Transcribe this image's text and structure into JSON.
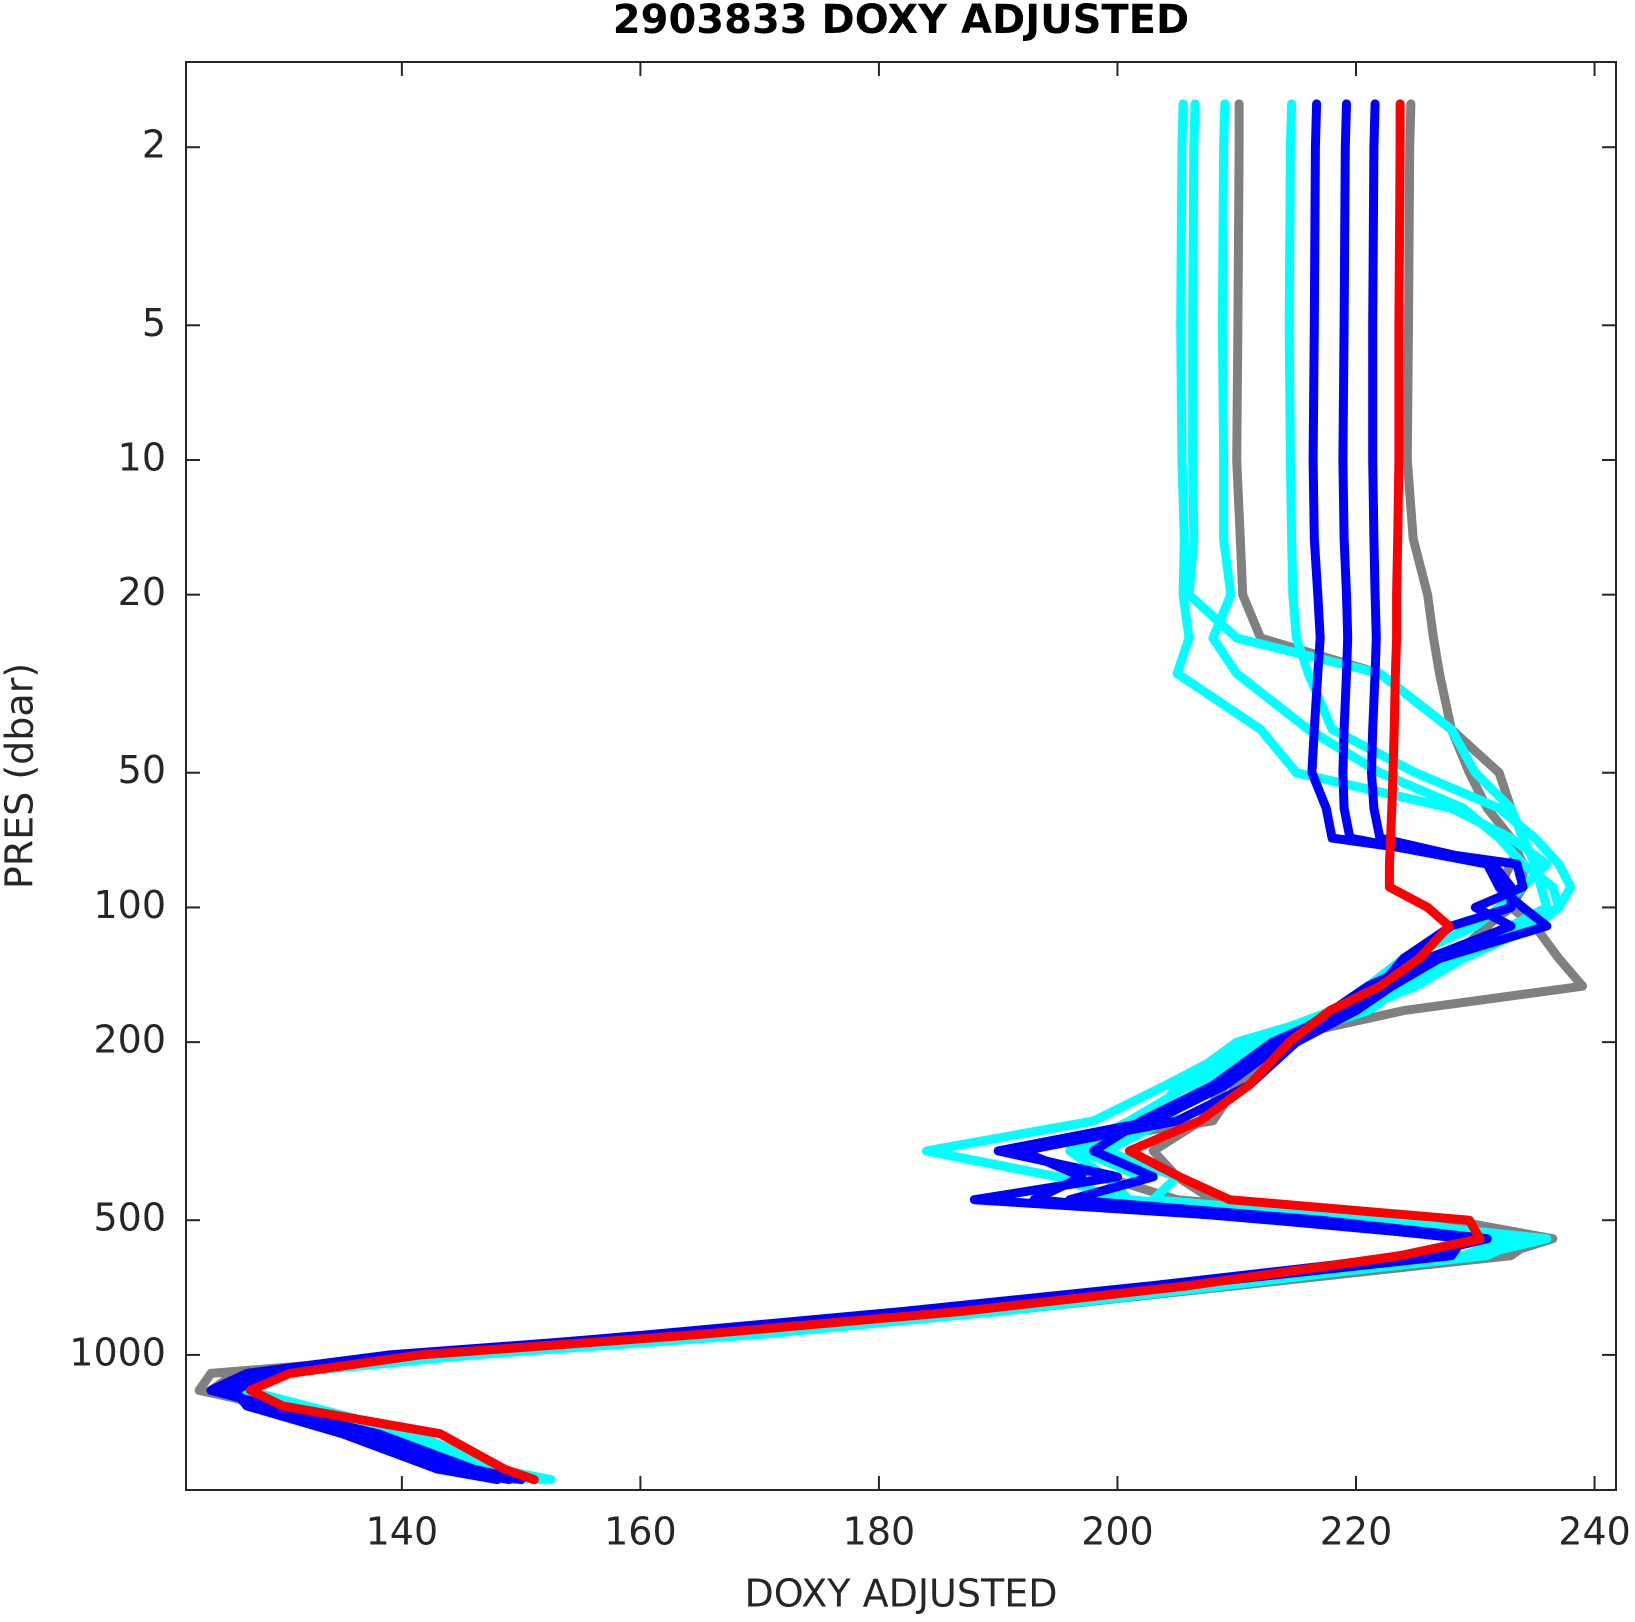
{
  "chart_data": {
    "type": "profile",
    "title": "2903833  DOXY ADJUSTED",
    "xlabel": "DOXY ADJUSTED",
    "ylabel": "PRES (dbar)",
    "xlim": [
      121.9,
      241.8
    ],
    "xticks": [
      140,
      160,
      180,
      200,
      220,
      240
    ],
    "ylim": [
      1.29,
      2004
    ],
    "yticks": [
      2,
      5,
      10,
      20,
      50,
      100,
      200,
      500,
      1000
    ],
    "y_scale": "log",
    "y_reversed": true,
    "y": [
      1.6,
      2,
      5,
      10,
      15,
      20,
      25,
      30,
      40,
      50,
      60,
      70,
      80,
      90,
      100,
      110,
      130,
      150,
      170,
      200,
      250,
      300,
      350,
      400,
      450,
      500,
      550,
      600,
      700,
      800,
      900,
      1000,
      1100,
      1200,
      1300,
      1500,
      1800,
      1900
    ],
    "series": [
      {
        "color": "#808080",
        "values": [
          210.2,
          210.2,
          210.1,
          210.0,
          210.3,
          210.5,
          212.0,
          222.0,
          228.0,
          232.0,
          233.0,
          234.0,
          233.0,
          232.0,
          233.0,
          235.0,
          237.0,
          239.0,
          224.0,
          212.0,
          209.0,
          207.0,
          203.0,
          205.0,
          208.0,
          228.0,
          236.5,
          232.0,
          207.0,
          188.0,
          166.0,
          143.0,
          124.0,
          123.0,
          129.0,
          137.0,
          145.0,
          150.0
        ]
      },
      {
        "color": "#808080",
        "values": [
          224.6,
          224.5,
          224.4,
          224.3,
          224.8,
          226.0,
          226.5,
          227.0,
          228.0,
          229.5,
          231.0,
          233.0,
          234.0,
          234.0,
          233.0,
          231.0,
          228.0,
          224.0,
          221.0,
          214.0,
          210.0,
          208.0,
          191.0,
          199.0,
          205.0,
          224.0,
          235.0,
          233.0,
          210.0,
          190.0,
          168.0,
          142.0,
          126.0,
          124.0,
          128.0,
          136.0,
          144.0,
          149.5
        ]
      },
      {
        "color": "#00ffff",
        "values": [
          205.5,
          205.4,
          205.3,
          205.4,
          205.6,
          205.5,
          206.0,
          205.0,
          212.0,
          215.0,
          228.0,
          233.0,
          236.0,
          234.0,
          232.0,
          230.0,
          224.0,
          221.0,
          218.0,
          211.0,
          204.0,
          198.0,
          184.0,
          195.0,
          200.0,
          220.0,
          233.0,
          229.0,
          207.0,
          188.0,
          168.0,
          144.0,
          128.0,
          126.0,
          131.0,
          140.0,
          147.0,
          152.0
        ]
      },
      {
        "color": "#00ffff",
        "values": [
          206.5,
          206.4,
          206.3,
          206.3,
          206.4,
          206.0,
          210.0,
          222.0,
          228.0,
          230.0,
          233.0,
          234.0,
          235.0,
          235.5,
          236.0,
          233.0,
          227.0,
          223.0,
          219.0,
          210.0,
          205.0,
          203.0,
          197.0,
          202.0,
          198.0,
          222.0,
          235.0,
          230.0,
          209.0,
          190.0,
          170.0,
          146.0,
          130.0,
          127.0,
          132.0,
          141.0,
          148.0,
          152.5
        ]
      },
      {
        "color": "#00ffff",
        "values": [
          214.6,
          214.5,
          214.4,
          214.5,
          214.6,
          214.7,
          215.0,
          216.0,
          218.0,
          225.0,
          232.0,
          235.0,
          237.0,
          238.0,
          237.0,
          234.0,
          228.0,
          224.0,
          221.0,
          213.0,
          207.0,
          204.0,
          199.0,
          205.0,
          203.0,
          223.0,
          234.0,
          231.0,
          208.0,
          189.0,
          169.0,
          145.0,
          129.0,
          127.0,
          130.0,
          139.0,
          147.0,
          151.5
        ]
      },
      {
        "color": "#00ffff",
        "values": [
          209.0,
          208.9,
          208.8,
          208.9,
          208.9,
          209.5,
          208.0,
          210.0,
          216.0,
          222.0,
          229.0,
          232.0,
          234.0,
          236.5,
          237.0,
          235.0,
          229.0,
          225.0,
          220.0,
          212.0,
          206.0,
          201.0,
          196.0,
          199.0,
          201.0,
          221.0,
          236.0,
          230.0,
          206.0,
          187.0,
          167.0,
          143.0,
          127.0,
          125.0,
          130.0,
          140.0,
          146.5,
          151.0
        ]
      },
      {
        "color": "#0000ff",
        "values": [
          216.7,
          216.6,
          216.5,
          216.4,
          216.5,
          216.8,
          217.0,
          216.8,
          216.5,
          216.3,
          217.5,
          218.0,
          233.5,
          234.0,
          230.0,
          233.0,
          226.0,
          221.0,
          218.0,
          214.0,
          209.0,
          203.0,
          190.0,
          200.0,
          188.0,
          215.0,
          229.0,
          228.0,
          205.0,
          184.0,
          163.0,
          140.0,
          128.0,
          125.0,
          128.0,
          138.0,
          146.0,
          150.0
        ]
      },
      {
        "color": "#0000ff",
        "values": [
          219.2,
          219.1,
          219.0,
          218.9,
          219.0,
          219.2,
          219.3,
          219.2,
          219.0,
          218.9,
          219.0,
          219.5,
          231.0,
          232.0,
          234.0,
          236.0,
          227.0,
          223.0,
          220.0,
          215.0,
          211.0,
          205.0,
          192.0,
          197.0,
          193.0,
          213.0,
          230.0,
          226.0,
          204.0,
          183.0,
          162.0,
          139.0,
          127.0,
          124.0,
          129.0,
          136.0,
          144.0,
          149.0
        ]
      },
      {
        "color": "#0000ff",
        "values": [
          221.6,
          221.5,
          221.4,
          221.4,
          221.5,
          221.6,
          221.7,
          221.6,
          221.4,
          221.3,
          221.5,
          222.0,
          231.5,
          233.0,
          233.0,
          228.0,
          224.0,
          222.0,
          219.0,
          213.0,
          208.0,
          202.0,
          198.0,
          203.0,
          196.0,
          217.0,
          231.0,
          225.0,
          203.0,
          182.0,
          161.0,
          141.0,
          129.0,
          126.0,
          127.0,
          135.0,
          143.0,
          148.0
        ]
      },
      {
        "color": "#ff0000",
        "values": [
          223.7,
          223.7,
          223.6,
          223.6,
          223.5,
          223.4,
          223.4,
          223.3,
          223.2,
          223.1,
          223.0,
          222.9,
          222.8,
          222.8,
          226.0,
          227.8,
          225.3,
          222.0,
          217.8,
          214.4,
          211.0,
          206.9,
          201.0,
          205.2,
          209.4,
          229.5,
          230.4,
          223.7,
          206.0,
          186.8,
          165.0,
          141.5,
          130.6,
          127.3,
          130.0,
          143.2,
          148.6,
          151.1
        ]
      }
    ]
  }
}
